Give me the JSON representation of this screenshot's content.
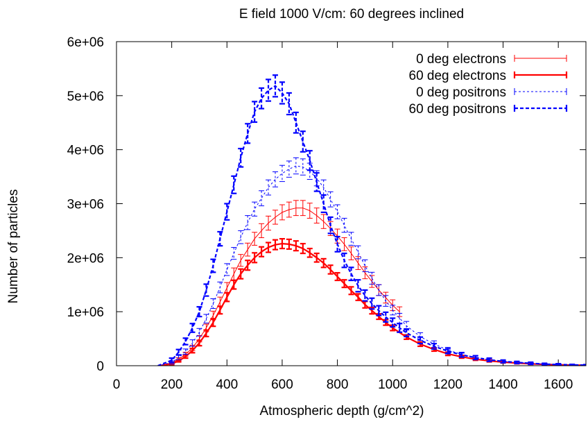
{
  "chart_data": {
    "type": "line",
    "title": "E field 1000 V/cm: 60 degrees inclined",
    "xlabel": "Atmospheric depth (g/cm^2)",
    "ylabel": "Number of particles",
    "xlim": [
      0,
      1700
    ],
    "ylim": [
      0,
      6000000
    ],
    "xticks": [
      0,
      200,
      400,
      600,
      800,
      1000,
      1200,
      1400,
      1600
    ],
    "xtick_labels": [
      "0",
      "200",
      "400",
      "600",
      "800",
      "1000",
      "1200",
      "1400",
      "1600"
    ],
    "yticks": [
      0,
      1000000,
      2000000,
      3000000,
      4000000,
      5000000,
      6000000
    ],
    "ytick_labels": [
      "0",
      "1e+06",
      "2e+06",
      "3e+06",
      "4e+06",
      "5e+06",
      "6e+06"
    ],
    "grid": false,
    "legend_position": "top-right",
    "colors": {
      "electrons": "#ff0000",
      "positrons": "#0000ff"
    },
    "series": [
      {
        "name": "0 deg electrons",
        "style": "thin-solid-errorbars",
        "color": "#ff0000",
        "x": [
          150,
          200,
          225,
          250,
          275,
          300,
          325,
          350,
          375,
          400,
          425,
          450,
          475,
          500,
          525,
          550,
          575,
          600,
          625,
          650,
          675,
          700,
          725,
          750,
          775,
          800,
          825,
          850,
          875,
          900,
          925,
          950,
          975,
          1000,
          1025
        ],
        "y": [
          0,
          50000,
          120000,
          210000,
          330000,
          500000,
          700000,
          930000,
          1180000,
          1440000,
          1700000,
          1950000,
          2150000,
          2350000,
          2500000,
          2640000,
          2750000,
          2840000,
          2890000,
          2920000,
          2920000,
          2870000,
          2780000,
          2670000,
          2540000,
          2400000,
          2250000,
          2080000,
          1900000,
          1720000,
          1560000,
          1400000,
          1260000,
          1120000,
          1000000
        ],
        "err": [
          0,
          20000,
          30000,
          40000,
          50000,
          60000,
          70000,
          80000,
          90000,
          100000,
          110000,
          110000,
          120000,
          120000,
          130000,
          130000,
          130000,
          140000,
          140000,
          140000,
          140000,
          140000,
          140000,
          130000,
          130000,
          130000,
          120000,
          120000,
          120000,
          110000,
          110000,
          100000,
          100000,
          100000,
          90000
        ]
      },
      {
        "name": "60 deg electrons",
        "style": "thick-solid-errorbars",
        "color": "#ff0000",
        "x": [
          150,
          200,
          225,
          250,
          275,
          300,
          325,
          350,
          375,
          400,
          425,
          450,
          475,
          500,
          525,
          550,
          575,
          600,
          625,
          650,
          675,
          700,
          725,
          750,
          775,
          800,
          825,
          850,
          875,
          900,
          925,
          950,
          975,
          1000,
          1050,
          1100,
          1150,
          1200,
          1250,
          1300,
          1350,
          1400,
          1450,
          1500,
          1550,
          1600,
          1650,
          1700
        ],
        "y": [
          0,
          30000,
          90000,
          170000,
          280000,
          420000,
          600000,
          800000,
          1030000,
          1270000,
          1500000,
          1700000,
          1860000,
          2000000,
          2110000,
          2190000,
          2240000,
          2260000,
          2250000,
          2220000,
          2170000,
          2090000,
          2000000,
          1900000,
          1780000,
          1650000,
          1520000,
          1390000,
          1270000,
          1130000,
          1020000,
          910000,
          800000,
          700000,
          530000,
          400000,
          300000,
          220000,
          165000,
          120000,
          90000,
          65000,
          50000,
          35000,
          25000,
          18000,
          12000,
          8000
        ],
        "err": [
          0,
          15000,
          20000,
          30000,
          40000,
          50000,
          60000,
          70000,
          70000,
          80000,
          80000,
          90000,
          90000,
          90000,
          90000,
          90000,
          90000,
          90000,
          90000,
          90000,
          90000,
          80000,
          80000,
          80000,
          80000,
          70000,
          70000,
          70000,
          60000,
          60000,
          60000,
          50000,
          50000,
          50000,
          40000,
          40000,
          30000,
          30000,
          25000,
          20000,
          20000,
          15000,
          15000,
          10000,
          10000,
          10000,
          8000,
          8000
        ]
      },
      {
        "name": "0 deg positrons",
        "style": "thin-dashed-errorbars",
        "color": "#0000ff",
        "x": [
          150,
          200,
          225,
          250,
          275,
          300,
          325,
          350,
          375,
          400,
          425,
          450,
          475,
          500,
          525,
          550,
          575,
          600,
          625,
          650,
          675,
          700,
          725,
          750,
          775,
          800,
          825,
          850,
          875,
          900,
          925,
          950,
          975,
          1000,
          1025,
          1050,
          1100,
          1150,
          1200,
          1250,
          1300,
          1350,
          1400,
          1450,
          1500,
          1550,
          1600,
          1650,
          1700
        ],
        "y": [
          0,
          60000,
          150000,
          260000,
          420000,
          620000,
          870000,
          1150000,
          1450000,
          1780000,
          2080000,
          2380000,
          2650000,
          2900000,
          3100000,
          3300000,
          3450000,
          3560000,
          3640000,
          3700000,
          3680000,
          3600000,
          3470000,
          3300000,
          3080000,
          2850000,
          2600000,
          2350000,
          2100000,
          1850000,
          1620000,
          1400000,
          1200000,
          1030000,
          880000,
          740000,
          540000,
          400000,
          290000,
          210000,
          150000,
          110000,
          80000,
          60000,
          45000,
          30000,
          22000,
          15000,
          10000
        ],
        "err": [
          0,
          30000,
          40000,
          50000,
          60000,
          70000,
          80000,
          90000,
          100000,
          110000,
          110000,
          120000,
          130000,
          130000,
          140000,
          140000,
          140000,
          150000,
          150000,
          150000,
          150000,
          150000,
          140000,
          140000,
          140000,
          130000,
          130000,
          120000,
          120000,
          110000,
          110000,
          100000,
          100000,
          90000,
          90000,
          80000,
          70000,
          60000,
          50000,
          40000,
          35000,
          30000,
          25000,
          20000,
          20000,
          15000,
          15000,
          10000,
          10000
        ]
      },
      {
        "name": "60 deg positrons",
        "style": "thick-dashed-errorbars",
        "color": "#0000ff",
        "x": [
          150,
          200,
          225,
          250,
          275,
          300,
          325,
          350,
          375,
          400,
          425,
          450,
          475,
          500,
          525,
          550,
          575,
          600,
          625,
          650,
          675,
          700,
          725,
          750,
          775,
          800,
          825,
          850,
          875,
          900,
          925,
          950,
          975,
          1000,
          1025,
          1050,
          1100,
          1150,
          1200,
          1250,
          1300,
          1350,
          1400,
          1450,
          1500,
          1550,
          1600,
          1650,
          1700
        ],
        "y": [
          0,
          100000,
          250000,
          450000,
          700000,
          1000000,
          1400000,
          1850000,
          2350000,
          2850000,
          3350000,
          3850000,
          4300000,
          4700000,
          4950000,
          5100000,
          5180000,
          5050000,
          4850000,
          4500000,
          4150000,
          3800000,
          3400000,
          3000000,
          2600000,
          2250000,
          1950000,
          1700000,
          1480000,
          1300000,
          1150000,
          1020000,
          900000,
          800000,
          700000,
          610000,
          470000,
          360000,
          270000,
          200000,
          150000,
          110000,
          80000,
          60000,
          45000,
          30000,
          22000,
          15000,
          10000
        ],
        "err": [
          0,
          40000,
          50000,
          60000,
          80000,
          90000,
          110000,
          120000,
          130000,
          150000,
          160000,
          170000,
          180000,
          190000,
          190000,
          200000,
          200000,
          200000,
          200000,
          190000,
          190000,
          180000,
          170000,
          160000,
          150000,
          140000,
          130000,
          120000,
          110000,
          100000,
          100000,
          90000,
          90000,
          80000,
          80000,
          70000,
          60000,
          50000,
          45000,
          40000,
          35000,
          30000,
          25000,
          20000,
          20000,
          15000,
          15000,
          10000,
          10000
        ]
      }
    ]
  }
}
